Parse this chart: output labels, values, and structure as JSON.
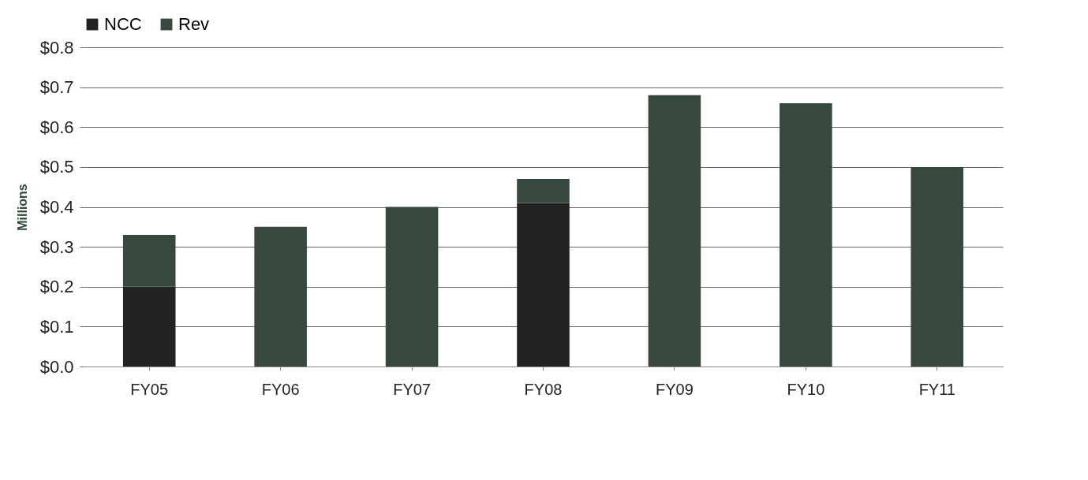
{
  "chart_data": {
    "type": "bar",
    "stacked": true,
    "ylabel": "Millions",
    "categories": [
      "FY05",
      "FY06",
      "FY07",
      "FY08",
      "FY09",
      "FY10",
      "FY11"
    ],
    "series": [
      {
        "name": "NCC",
        "color": "#222222",
        "values": [
          0.2,
          null,
          null,
          0.41,
          null,
          null,
          null
        ]
      },
      {
        "name": "Rev",
        "color": "#37483f",
        "values": [
          0.13,
          0.35,
          0.4,
          0.06,
          0.68,
          0.66,
          0.5
        ]
      }
    ],
    "ylim": [
      0,
      0.8
    ],
    "yticks": [
      {
        "value": 0,
        "label": "$0.0"
      },
      {
        "value": 0.1,
        "label": "$0.1"
      },
      {
        "value": 0.2,
        "label": "$0.2"
      },
      {
        "value": 0.3,
        "label": "$0.3"
      },
      {
        "value": 0.4,
        "label": "$0.4"
      },
      {
        "value": 0.5,
        "label": "$0.5"
      },
      {
        "value": 0.6,
        "label": "$0.6"
      },
      {
        "value": 0.7,
        "label": "$0.7"
      },
      {
        "value": 0.8,
        "label": "$0.8"
      }
    ],
    "grid": "y",
    "legend": "top"
  }
}
